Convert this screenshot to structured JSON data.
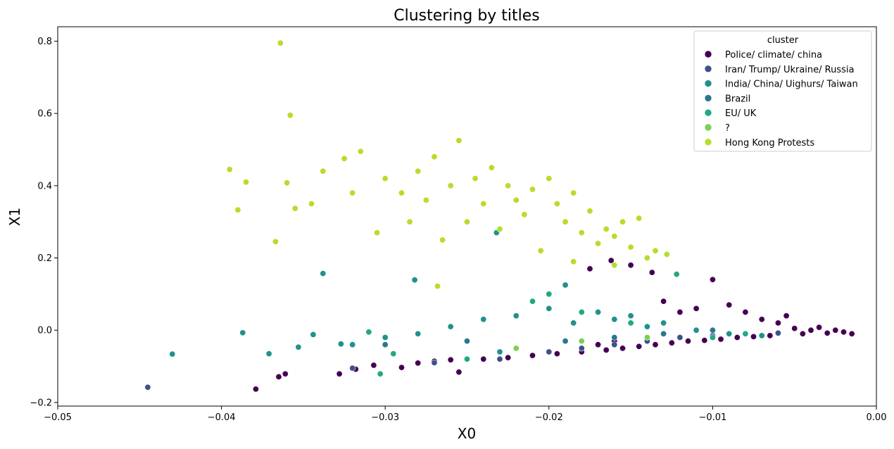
{
  "chart_data": {
    "type": "scatter",
    "title": "Clustering by titles",
    "xlabel": "X0",
    "ylabel": "X1",
    "xlim": [
      -0.05,
      0.0
    ],
    "ylim": [
      -0.21,
      0.84
    ],
    "xticks": [
      -0.05,
      -0.04,
      -0.03,
      -0.02,
      -0.01,
      0.0
    ],
    "xtick_labels": [
      "−0.05",
      "−0.04",
      "−0.03",
      "−0.02",
      "−0.01",
      "0.00"
    ],
    "yticks": [
      -0.2,
      0.0,
      0.2,
      0.4,
      0.6,
      0.8
    ],
    "ytick_labels": [
      "−0.2",
      "0.0",
      "0.2",
      "0.4",
      "0.6",
      "0.8"
    ],
    "grid": false,
    "legend": {
      "title": "cluster",
      "placement": "top-right"
    },
    "series": [
      {
        "name": "Police/ climate/ china",
        "color": "#440154",
        "points": [
          [
            -0.0379,
            -0.163
          ],
          [
            -0.0365,
            -0.129
          ],
          [
            -0.0361,
            -0.121
          ],
          [
            -0.0328,
            -0.121
          ],
          [
            -0.0318,
            -0.108
          ],
          [
            -0.0307,
            -0.097
          ],
          [
            -0.029,
            -0.103
          ],
          [
            -0.028,
            -0.091
          ],
          [
            -0.027,
            -0.086
          ],
          [
            -0.026,
            -0.082
          ],
          [
            -0.0255,
            -0.116
          ],
          [
            -0.024,
            -0.08
          ],
          [
            -0.0225,
            -0.076
          ],
          [
            -0.021,
            -0.07
          ],
          [
            -0.0195,
            -0.065
          ],
          [
            -0.018,
            -0.06
          ],
          [
            -0.017,
            -0.04
          ],
          [
            -0.0165,
            -0.055
          ],
          [
            -0.016,
            -0.03
          ],
          [
            -0.0155,
            -0.05
          ],
          [
            -0.015,
            0.02
          ],
          [
            -0.0145,
            -0.045
          ],
          [
            -0.014,
            0.01
          ],
          [
            -0.0135,
            -0.04
          ],
          [
            -0.013,
            0.08
          ],
          [
            -0.0125,
            -0.035
          ],
          [
            -0.012,
            0.05
          ],
          [
            -0.0115,
            -0.03
          ],
          [
            -0.011,
            0.06
          ],
          [
            -0.0105,
            -0.028
          ],
          [
            -0.01,
            0.14
          ],
          [
            -0.0095,
            -0.025
          ],
          [
            -0.009,
            0.07
          ],
          [
            -0.0085,
            -0.02
          ],
          [
            -0.008,
            0.05
          ],
          [
            -0.0075,
            -0.018
          ],
          [
            -0.007,
            0.03
          ],
          [
            -0.0065,
            -0.015
          ],
          [
            -0.006,
            0.02
          ],
          [
            -0.0055,
            0.04
          ],
          [
            -0.005,
            0.005
          ],
          [
            -0.0045,
            -0.01
          ],
          [
            -0.004,
            0.0
          ],
          [
            -0.0035,
            0.008
          ],
          [
            -0.003,
            -0.008
          ],
          [
            -0.0025,
            0.0
          ],
          [
            -0.002,
            -0.005
          ],
          [
            -0.0015,
            -0.01
          ],
          [
            -0.0162,
            0.193
          ],
          [
            -0.0137,
            0.16
          ],
          [
            -0.0175,
            0.17
          ],
          [
            -0.015,
            0.18
          ]
        ]
      },
      {
        "name": "Iran/ Trump/ Ukraine/ Russia",
        "color": "#3b528b",
        "points": [
          [
            -0.0445,
            -0.158
          ],
          [
            -0.032,
            -0.105
          ],
          [
            -0.027,
            -0.09
          ],
          [
            -0.023,
            -0.08
          ],
          [
            -0.02,
            -0.06
          ],
          [
            -0.018,
            -0.05
          ],
          [
            -0.016,
            -0.04
          ],
          [
            -0.014,
            -0.03
          ],
          [
            -0.012,
            -0.02
          ],
          [
            -0.01,
            -0.015
          ],
          [
            -0.008,
            -0.01
          ],
          [
            -0.006,
            -0.008
          ]
        ]
      },
      {
        "name": "India/ China/ Uighurs/ Taiwan",
        "color": "#21918c",
        "points": [
          [
            -0.043,
            -0.066
          ],
          [
            -0.0387,
            -0.007
          ],
          [
            -0.0371,
            -0.065
          ],
          [
            -0.0353,
            -0.047
          ],
          [
            -0.0344,
            -0.012
          ],
          [
            -0.0338,
            0.157
          ],
          [
            -0.0327,
            -0.038
          ],
          [
            -0.032,
            -0.04
          ],
          [
            -0.03,
            -0.02
          ],
          [
            -0.0282,
            0.139
          ],
          [
            -0.028,
            -0.01
          ],
          [
            -0.026,
            0.01
          ],
          [
            -0.024,
            0.03
          ],
          [
            -0.023,
            -0.06
          ],
          [
            -0.022,
            0.04
          ],
          [
            -0.02,
            0.06
          ],
          [
            -0.019,
            0.125
          ],
          [
            -0.0185,
            0.02
          ],
          [
            -0.017,
            0.05
          ],
          [
            -0.016,
            0.03
          ],
          [
            -0.015,
            0.04
          ],
          [
            -0.014,
            0.01
          ],
          [
            -0.013,
            0.02
          ],
          [
            -0.011,
            0.0
          ],
          [
            -0.009,
            -0.01
          ],
          [
            -0.007,
            -0.015
          ],
          [
            -0.0232,
            0.27
          ]
        ]
      },
      {
        "name": "Brazil",
        "color": "#2a788e",
        "points": [
          [
            -0.03,
            -0.04
          ],
          [
            -0.025,
            -0.03
          ],
          [
            -0.022,
            -0.05
          ],
          [
            -0.019,
            -0.03
          ],
          [
            -0.016,
            -0.02
          ],
          [
            -0.013,
            -0.01
          ],
          [
            -0.01,
            0.0
          ]
        ]
      },
      {
        "name": "EU/ UK",
        "color": "#22a884",
        "points": [
          [
            -0.031,
            -0.005
          ],
          [
            -0.0303,
            -0.121
          ],
          [
            -0.0295,
            -0.065
          ],
          [
            -0.025,
            -0.08
          ],
          [
            -0.021,
            0.08
          ],
          [
            -0.02,
            0.1
          ],
          [
            -0.018,
            0.05
          ],
          [
            -0.015,
            0.02
          ],
          [
            -0.0122,
            0.155
          ],
          [
            -0.01,
            -0.02
          ],
          [
            -0.008,
            -0.01
          ]
        ]
      },
      {
        "name": "?",
        "color": "#7ad151",
        "points": [
          [
            -0.022,
            -0.05
          ],
          [
            -0.018,
            -0.03
          ],
          [
            -0.014,
            -0.02
          ]
        ]
      },
      {
        "name": "Hong Kong Protests",
        "color": "#b5de2b",
        "points": [
          [
            -0.0364,
            0.795
          ],
          [
            -0.0358,
            0.595
          ],
          [
            -0.0395,
            0.445
          ],
          [
            -0.0385,
            0.41
          ],
          [
            -0.039,
            0.333
          ],
          [
            -0.0367,
            0.245
          ],
          [
            -0.036,
            0.408
          ],
          [
            -0.0355,
            0.337
          ],
          [
            -0.0345,
            0.35
          ],
          [
            -0.0338,
            0.44
          ],
          [
            -0.0325,
            0.475
          ],
          [
            -0.032,
            0.38
          ],
          [
            -0.0315,
            0.495
          ],
          [
            -0.03,
            0.42
          ],
          [
            -0.0305,
            0.27
          ],
          [
            -0.029,
            0.38
          ],
          [
            -0.0285,
            0.3
          ],
          [
            -0.028,
            0.44
          ],
          [
            -0.0275,
            0.36
          ],
          [
            -0.027,
            0.48
          ],
          [
            -0.0268,
            0.122
          ],
          [
            -0.0265,
            0.25
          ],
          [
            -0.026,
            0.4
          ],
          [
            -0.0255,
            0.525
          ],
          [
            -0.025,
            0.3
          ],
          [
            -0.0245,
            0.42
          ],
          [
            -0.024,
            0.35
          ],
          [
            -0.0235,
            0.45
          ],
          [
            -0.023,
            0.28
          ],
          [
            -0.0225,
            0.4
          ],
          [
            -0.022,
            0.36
          ],
          [
            -0.0215,
            0.32
          ],
          [
            -0.021,
            0.39
          ],
          [
            -0.0205,
            0.22
          ],
          [
            -0.02,
            0.42
          ],
          [
            -0.0195,
            0.35
          ],
          [
            -0.019,
            0.3
          ],
          [
            -0.0185,
            0.38
          ],
          [
            -0.018,
            0.27
          ],
          [
            -0.0175,
            0.33
          ],
          [
            -0.017,
            0.24
          ],
          [
            -0.0165,
            0.28
          ],
          [
            -0.016,
            0.26
          ],
          [
            -0.0155,
            0.3
          ],
          [
            -0.015,
            0.23
          ],
          [
            -0.0145,
            0.31
          ],
          [
            -0.014,
            0.2
          ],
          [
            -0.0135,
            0.22
          ],
          [
            -0.0128,
            0.21
          ],
          [
            -0.0185,
            0.19
          ],
          [
            -0.016,
            0.18
          ]
        ]
      }
    ]
  }
}
